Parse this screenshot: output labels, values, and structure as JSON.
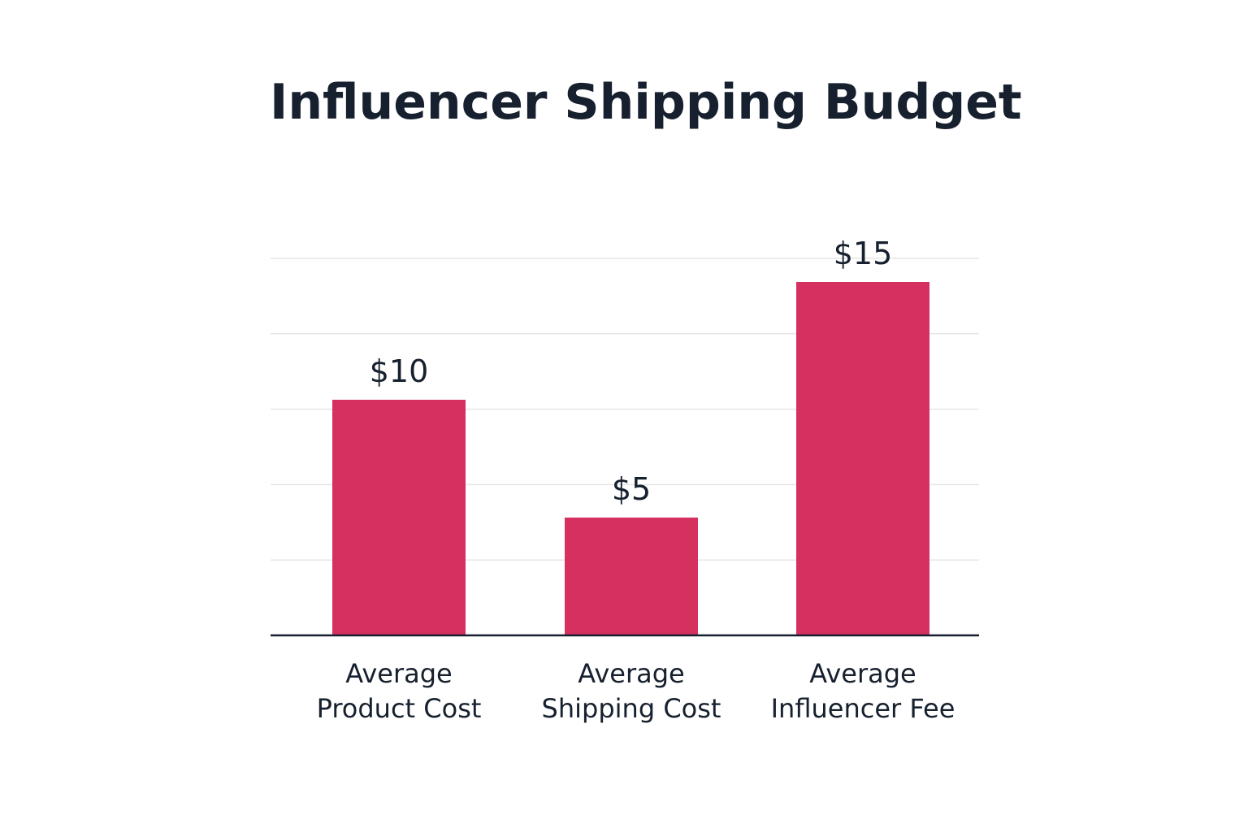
{
  "chart_data": {
    "type": "bar",
    "title": "Influencer Shipping Budget",
    "categories": [
      [
        "Average",
        "Product Cost"
      ],
      [
        "Average",
        "Shipping Cost"
      ],
      [
        "Average",
        "Influencer Fee"
      ]
    ],
    "values": [
      10,
      5,
      15
    ],
    "value_labels": [
      "$10",
      "$5",
      "$15"
    ],
    "ylim": [
      0,
      17.5
    ],
    "grid": true,
    "y_ticks_shown": false,
    "xlabel": "",
    "ylabel": "",
    "colors": {
      "bar": "#d63061",
      "text": "#17202e",
      "grid": "#e6e6e6",
      "axis": "#17202e"
    }
  }
}
